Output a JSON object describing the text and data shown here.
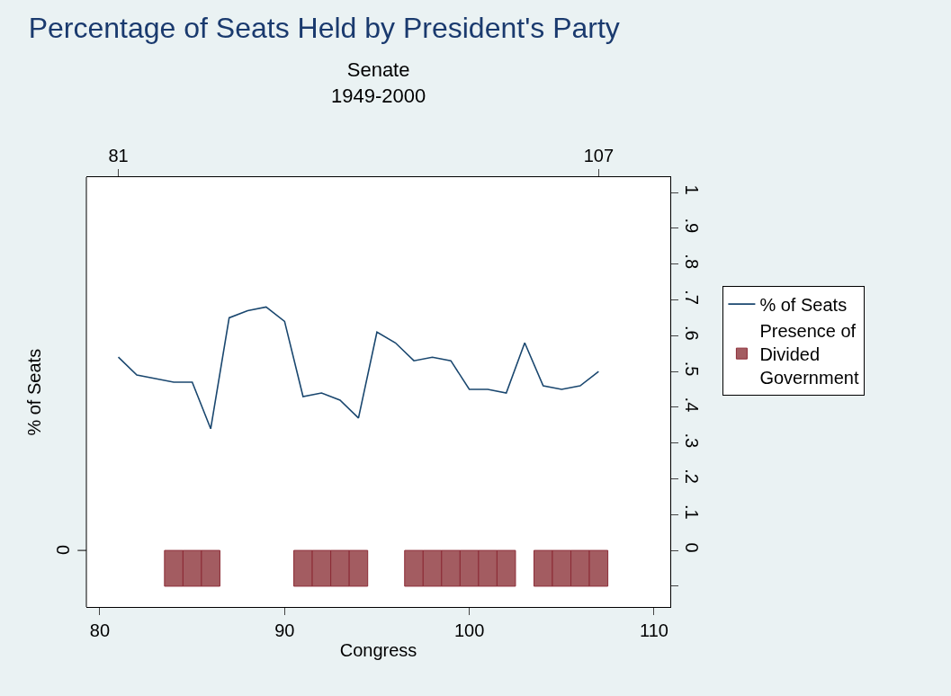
{
  "chart_data": {
    "type": "line",
    "title": "Percentage of Seats Held by President's Party",
    "subtitle": "Senate\n1949-2000",
    "xlabel": "Congress",
    "ylabel": "% of Seats",
    "xlim": [
      79.27,
      110.88
    ],
    "xticks": [
      80,
      90,
      100,
      110
    ],
    "x2lim": [
      79.27,
      110.88
    ],
    "x2ticks": [
      81,
      107
    ],
    "annotations": [
      "0"
    ],
    "ylim": [
      -0.158,
      1.043
    ],
    "yticks": [
      {
        "value": -0.1,
        "label": null
      },
      0,
      {
        "value": 0.1,
        "label": ".1"
      },
      {
        "value": 0.2,
        "label": ".2"
      },
      {
        "value": 0.3,
        "label": ".3"
      },
      {
        "value": 0.4,
        "label": ".4"
      },
      {
        "value": 0.5,
        "label": ".5"
      },
      {
        "value": 0.6,
        "label": ".6"
      },
      {
        "value": 0.7,
        "label": ".7"
      },
      {
        "value": 0.8,
        "label": ".8"
      },
      {
        "value": 0.9,
        "label": ".9"
      },
      1
    ],
    "legend": "right",
    "series": [
      {
        "name": "% of Seats",
        "color": "#1a476f",
        "x": [
          81,
          82,
          83,
          84,
          85,
          86,
          87,
          88,
          89,
          90,
          91,
          92,
          93,
          94,
          95,
          96,
          97,
          98,
          99,
          100,
          101,
          102,
          103,
          104,
          105,
          106,
          107
        ],
        "values": [
          0.54,
          0.49,
          0.48,
          0.47,
          0.47,
          0.34,
          0.65,
          0.67,
          0.68,
          0.64,
          0.43,
          0.44,
          0.42,
          0.37,
          0.61,
          0.58,
          0.53,
          0.54,
          0.53,
          0.45,
          0.45,
          0.44,
          0.58,
          0.46,
          0.45,
          0.46,
          0.5
        ]
      },
      {
        "name": "Presence of Divided Government",
        "type": "bar",
        "color": "#a35c61",
        "x": [
          84,
          85,
          86,
          91,
          92,
          93,
          94,
          97,
          98,
          99,
          100,
          101,
          102,
          104,
          105,
          106,
          107
        ],
        "base": [
          0,
          0,
          0,
          0,
          0,
          0,
          0,
          0,
          0,
          0,
          0,
          0,
          0,
          0,
          0,
          0,
          0
        ],
        "values": [
          -0.1,
          -0.1,
          -0.1,
          -0.1,
          -0.1,
          -0.1,
          -0.1,
          -0.1,
          -0.1,
          -0.1,
          -0.1,
          -0.1,
          -0.1,
          -0.1,
          -0.1,
          -0.1,
          -0.1
        ]
      }
    ]
  }
}
